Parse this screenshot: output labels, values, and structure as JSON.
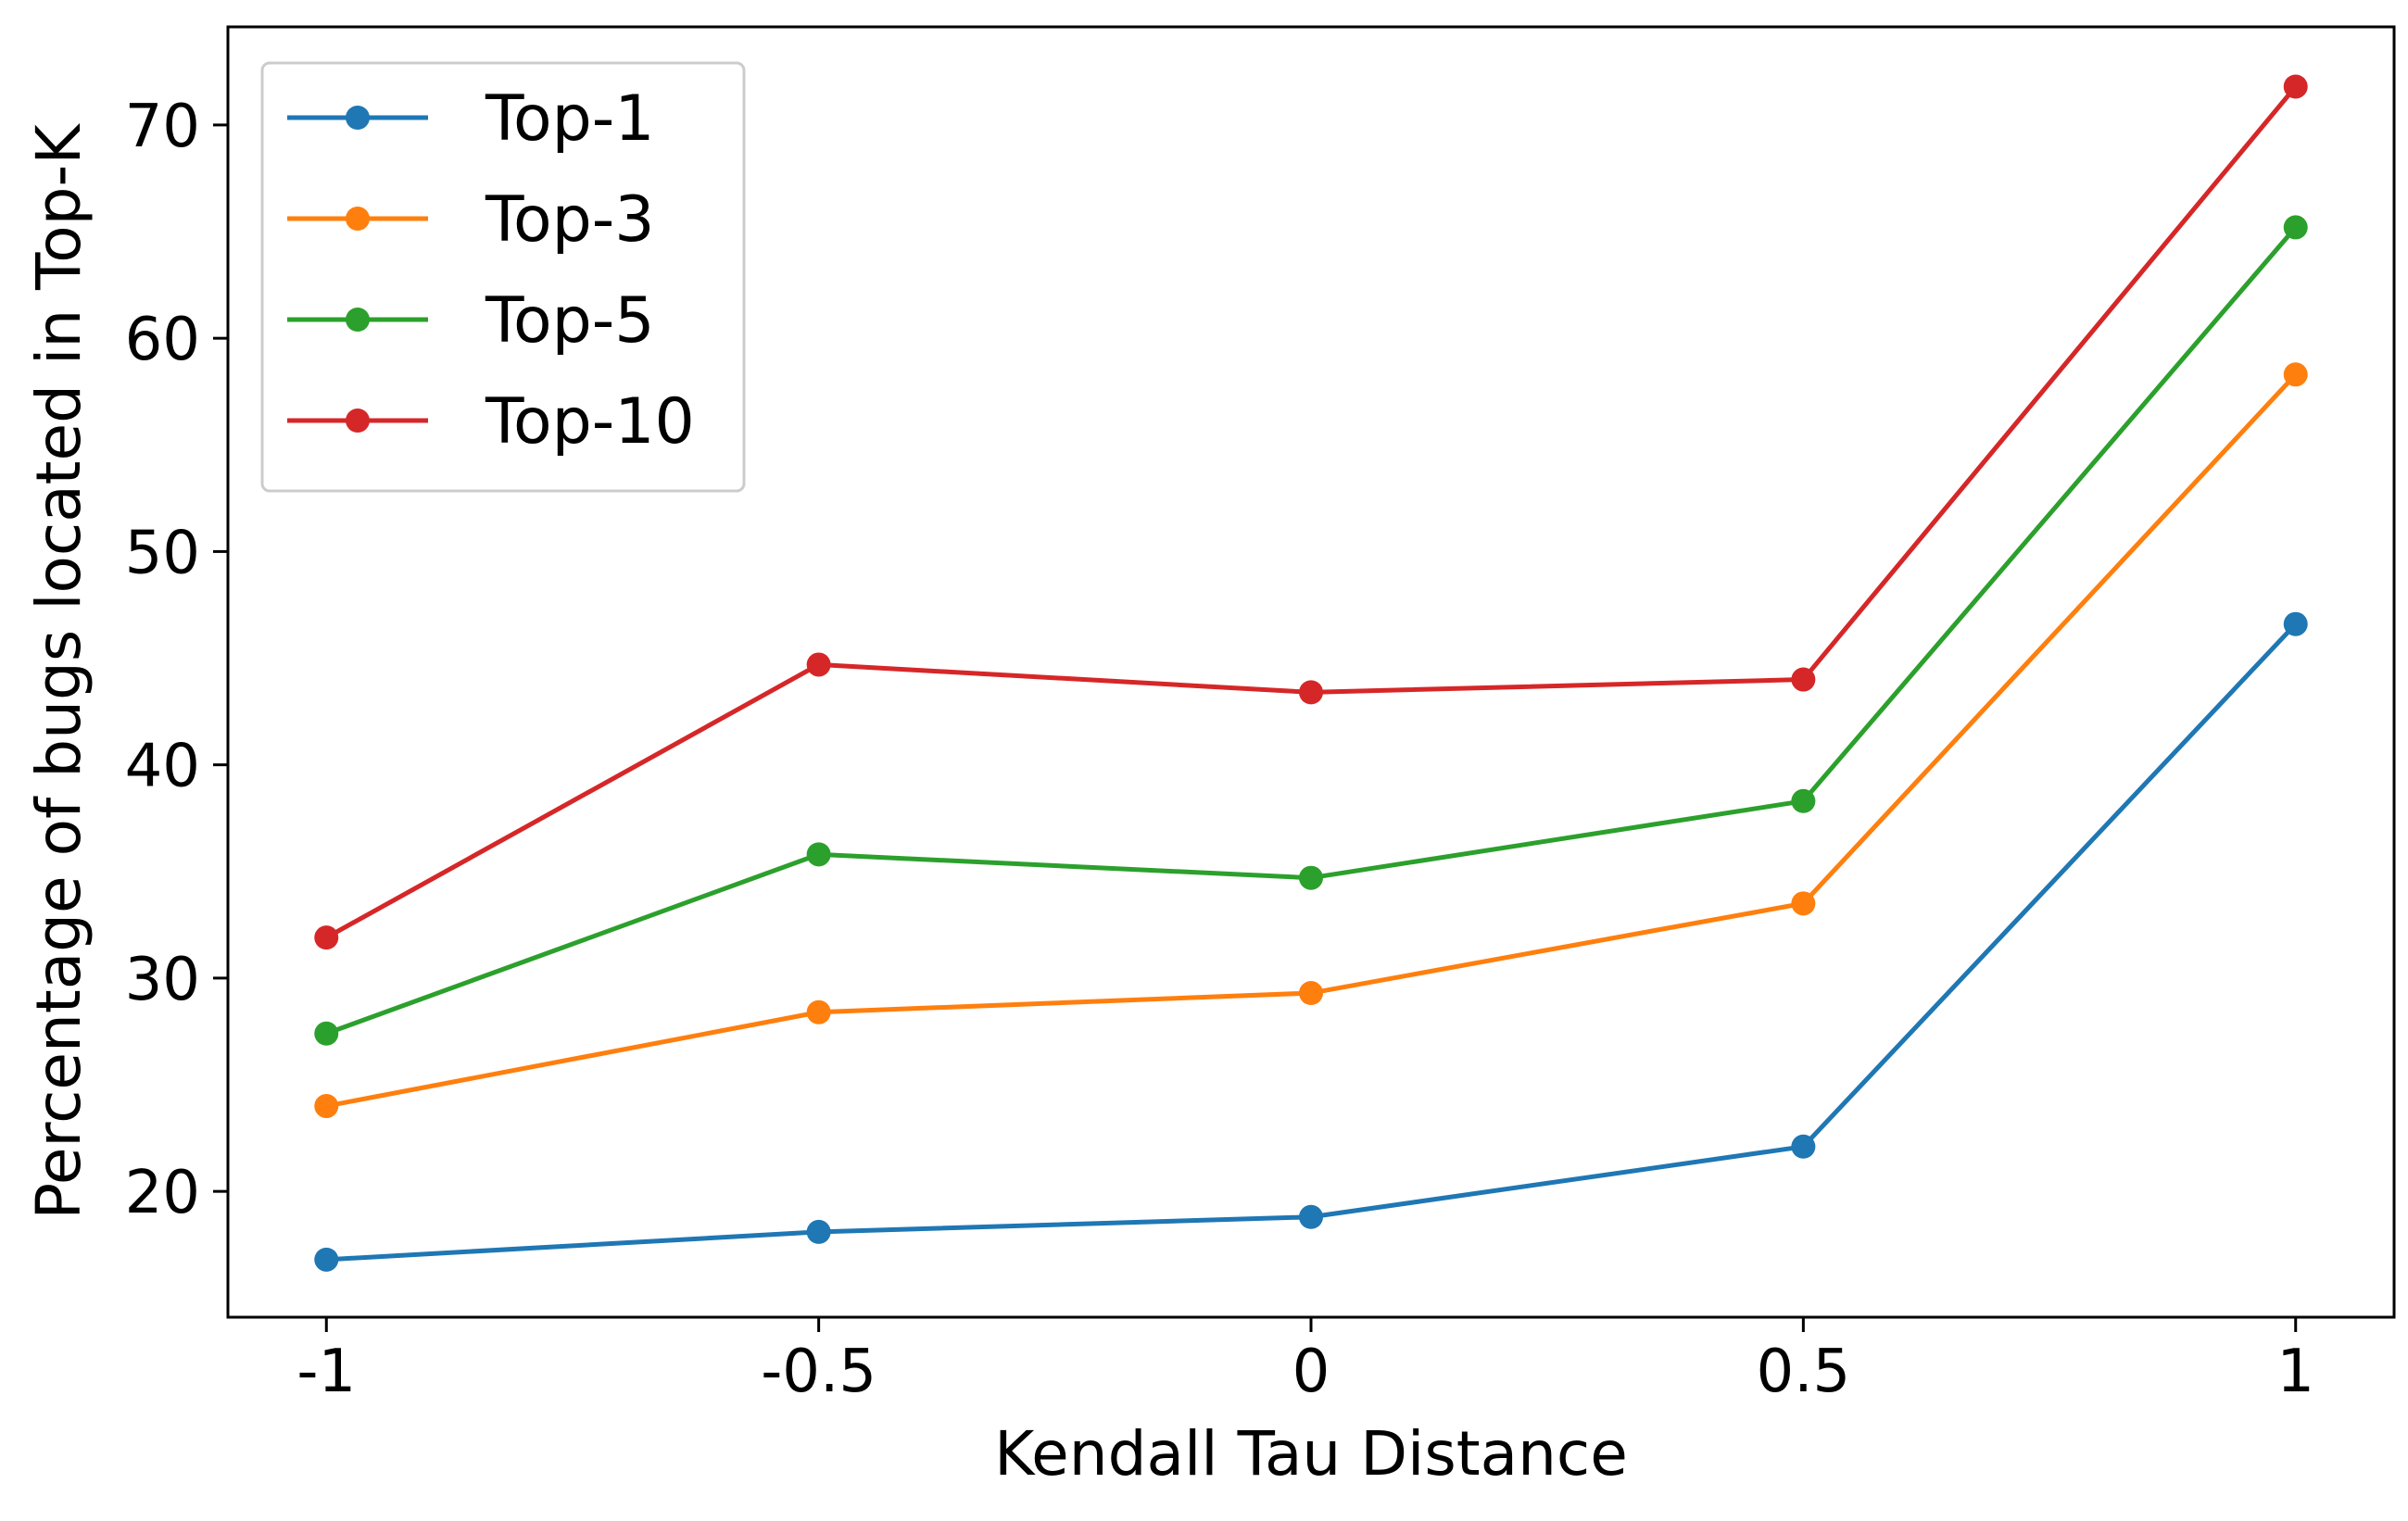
{
  "chart_data": {
    "type": "line",
    "xlabel": "Kendall Tau Distance",
    "ylabel": "Percentage of bugs located in Top-K",
    "x": [
      -1,
      -0.5,
      0,
      0.5,
      1
    ],
    "x_tick_labels": [
      "-1",
      "-0.5",
      "0",
      "0.5",
      "1"
    ],
    "xlim": [
      -1.1,
      1.1
    ],
    "y_ticks": [
      20,
      30,
      40,
      50,
      60,
      70
    ],
    "y_tick_labels": [
      "20",
      "30",
      "40",
      "50",
      "60",
      "70"
    ],
    "ylim": [
      14.1,
      74.6
    ],
    "grid": false,
    "legend_position": "top-left",
    "series": [
      {
        "name": "Top-1",
        "color": "#1f77b4",
        "values": [
          16.8,
          18.1,
          18.8,
          22.1,
          46.6
        ]
      },
      {
        "name": "Top-3",
        "color": "#ff7f0e",
        "values": [
          24.0,
          28.4,
          29.3,
          33.5,
          58.3
        ]
      },
      {
        "name": "Top-5",
        "color": "#2ca02c",
        "values": [
          27.4,
          35.8,
          34.7,
          38.3,
          65.2
        ]
      },
      {
        "name": "Top-10",
        "color": "#d62728",
        "values": [
          31.9,
          44.7,
          43.4,
          44.0,
          71.8
        ]
      }
    ]
  }
}
